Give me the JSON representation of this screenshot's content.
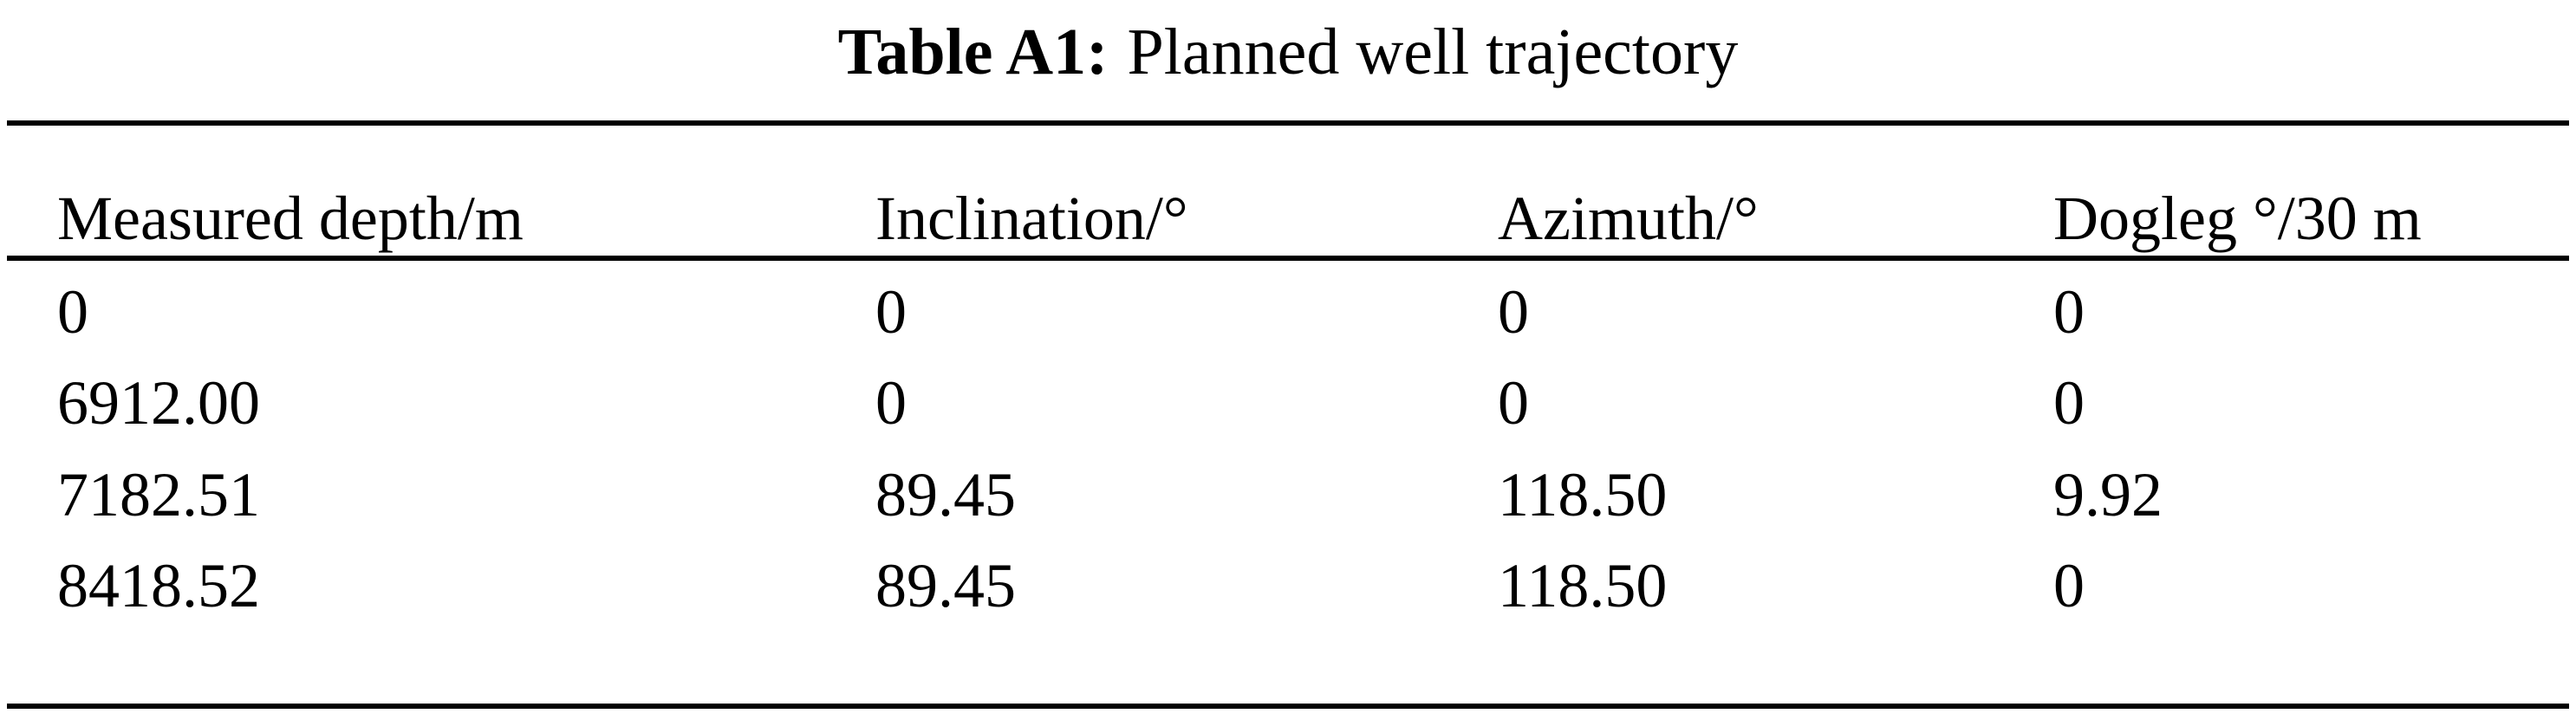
{
  "table": {
    "label": "Table A1:",
    "caption": "Planned well trajectory",
    "headers": [
      "Measured depth/m",
      "Inclination/°",
      "Azimuth/°",
      "Dogleg °/30 m"
    ],
    "rows": [
      [
        "0",
        "0",
        "0",
        "0"
      ],
      [
        "6912.00",
        "0",
        "0",
        "0"
      ],
      [
        "7182.51",
        "89.45",
        "118.50",
        "9.92"
      ],
      [
        "8418.52",
        "89.45",
        "118.50",
        "0"
      ]
    ]
  }
}
